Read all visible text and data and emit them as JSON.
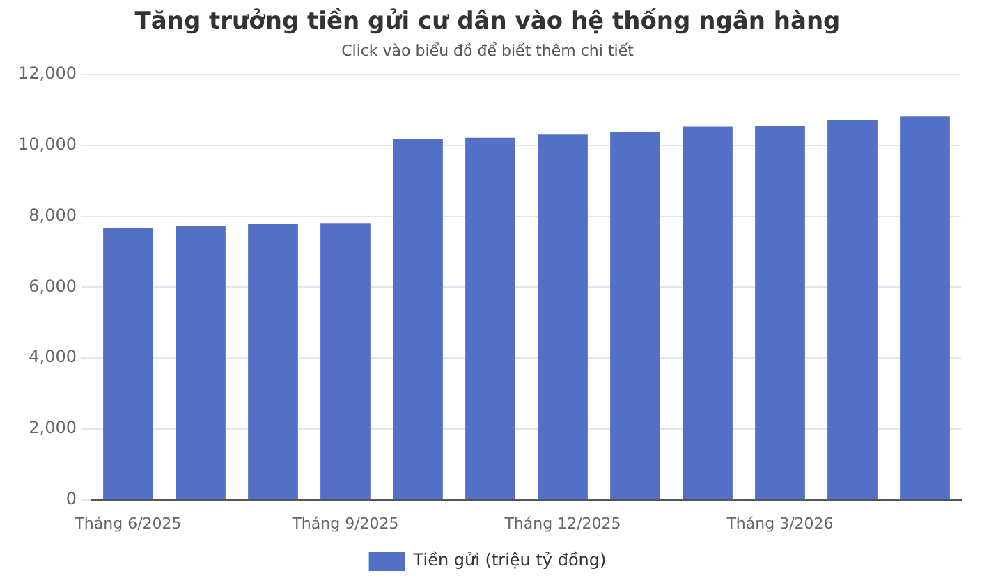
{
  "chart_data": {
    "type": "bar",
    "title": "Tăng trưởng tiền gửi cư dân vào hệ thống ngân hàng",
    "subtitle": "Click vào biểu đồ để biết thêm chi tiết",
    "categories": [
      "Tháng 6/2025",
      null,
      null,
      "Tháng 9/2025",
      null,
      null,
      "Tháng 12/2025",
      null,
      null,
      "Tháng 3/2026",
      null,
      null
    ],
    "series": [
      {
        "name": "Tiền gửi (triệu tỷ đồng)",
        "color": "#5470c6",
        "values": [
          7680,
          7730,
          7790,
          7810,
          10180,
          10220,
          10310,
          10380,
          10540,
          10550,
          10710,
          10820
        ]
      }
    ],
    "ylim": [
      0,
      12000
    ],
    "yticks": [
      {
        "value": 0,
        "label": "0"
      },
      {
        "value": 2000,
        "label": "2,000"
      },
      {
        "value": 4000,
        "label": "4,000"
      },
      {
        "value": 6000,
        "label": "6,000"
      },
      {
        "value": 8000,
        "label": "8,000"
      },
      {
        "value": 10000,
        "label": "10,000"
      },
      {
        "value": 12000,
        "label": "12,000"
      }
    ],
    "grid": "y",
    "legend": "bottom"
  }
}
